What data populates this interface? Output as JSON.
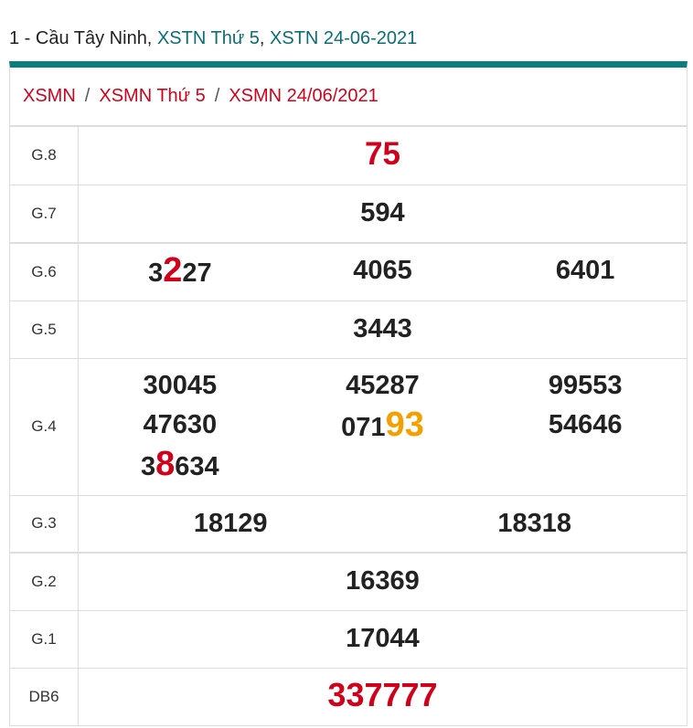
{
  "title": {
    "prefix": "1 - Cầu Tây Ninh, ",
    "link1": "XSTN Thứ 5",
    "comma": ", ",
    "link2": "XSTN 24-06-2021"
  },
  "breadcrumb": [
    "XSMN",
    "XSMN Thứ 5",
    "XSMN 24/06/2021"
  ],
  "breadcrumb_separator": "/",
  "colors": {
    "accent": "#0a7d7d",
    "red": "#d0021b",
    "orange": "#f5a000"
  },
  "prizes": [
    {
      "label": "G.8",
      "height": 63,
      "style": "g8",
      "columns": [
        [
          [
            {
              "t": "75"
            }
          ]
        ]
      ]
    },
    {
      "label": "G.7",
      "height": 64,
      "thick": true,
      "columns": [
        [
          [
            {
              "t": "594"
            }
          ]
        ]
      ]
    },
    {
      "label": "G.6",
      "height": 63,
      "columns": [
        [
          [
            {
              "t": "3"
            },
            {
              "t": "2",
              "h": "red"
            },
            {
              "t": "27"
            }
          ]
        ],
        [
          [
            {
              "t": "4065"
            }
          ]
        ],
        [
          [
            {
              "t": "6401"
            }
          ]
        ]
      ]
    },
    {
      "label": "G.5",
      "height": 63,
      "columns": [
        [
          [
            {
              "t": "3443"
            }
          ]
        ]
      ]
    },
    {
      "label": "G.4",
      "height": 150,
      "columns": [
        [
          [
            {
              "t": "30045"
            }
          ],
          [
            {
              "t": "47630"
            }
          ],
          [
            {
              "t": "3"
            },
            {
              "t": "8",
              "h": "red"
            },
            {
              "t": "634"
            }
          ]
        ],
        [
          [
            {
              "t": "45287"
            }
          ],
          [
            {
              "t": "071"
            },
            {
              "t": "93",
              "h": "orange"
            }
          ]
        ],
        [
          [
            {
              "t": "99553"
            }
          ],
          [
            {
              "t": "54646"
            }
          ]
        ]
      ]
    },
    {
      "label": "G.3",
      "height": 63,
      "thick": true,
      "columns": [
        [
          [
            {
              "t": "18129"
            }
          ]
        ],
        [
          [
            {
              "t": "18318"
            }
          ]
        ]
      ]
    },
    {
      "label": "G.2",
      "height": 63,
      "columns": [
        [
          [
            {
              "t": "16369"
            }
          ]
        ]
      ]
    },
    {
      "label": "G.1",
      "height": 63,
      "columns": [
        [
          [
            {
              "t": "17044"
            }
          ]
        ]
      ]
    },
    {
      "label": "DB6",
      "height": 63,
      "style": "big",
      "columns": [
        [
          [
            {
              "t": "337777"
            }
          ]
        ]
      ]
    }
  ]
}
